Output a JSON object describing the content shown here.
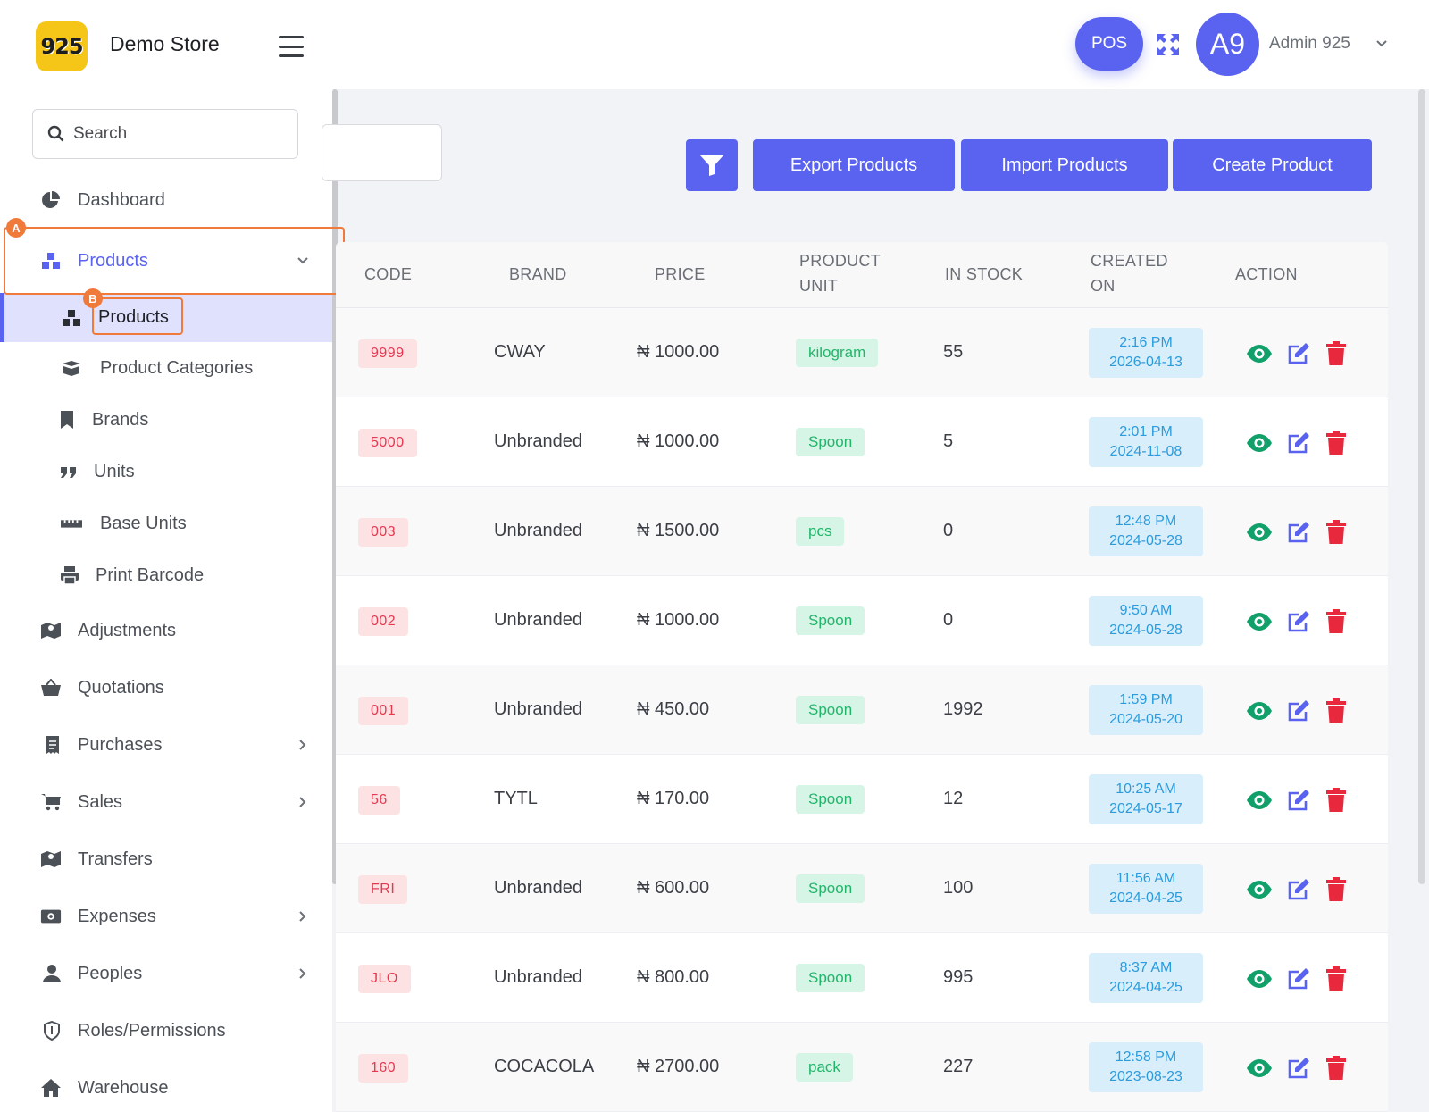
{
  "header": {
    "logo_text": "925",
    "store_name": "Demo Store",
    "pos_label": "POS",
    "avatar_initials": "A9",
    "user_name": "Admin 925"
  },
  "sidebar": {
    "search_placeholder": "Search",
    "items": [
      {
        "label": "Dashboard",
        "icon": "pie-chart-icon"
      },
      {
        "label": "Products",
        "icon": "boxes-icon"
      },
      {
        "label": "Products",
        "icon": "boxes-icon"
      },
      {
        "label": "Product Categories",
        "icon": "box-open-icon"
      },
      {
        "label": "Brands",
        "icon": "bookmark-icon"
      },
      {
        "label": "Units",
        "icon": "quote-icon"
      },
      {
        "label": "Base Units",
        "icon": "ruler-icon"
      },
      {
        "label": "Print Barcode",
        "icon": "printer-icon"
      },
      {
        "label": "Adjustments",
        "icon": "map-icon"
      },
      {
        "label": "Quotations",
        "icon": "basket-icon"
      },
      {
        "label": "Purchases",
        "icon": "receipt-icon"
      },
      {
        "label": "Sales",
        "icon": "cart-icon"
      },
      {
        "label": "Transfers",
        "icon": "map-icon"
      },
      {
        "label": "Expenses",
        "icon": "money-icon"
      },
      {
        "label": "Peoples",
        "icon": "user-icon"
      },
      {
        "label": "Roles/Permissions",
        "icon": "shield-icon"
      },
      {
        "label": "Warehouse",
        "icon": "home-icon"
      }
    ]
  },
  "annotations": {
    "a": "A",
    "b": "B"
  },
  "toolbar": {
    "export_label": "Export Products",
    "import_label": "Import Products",
    "create_label": "Create Product"
  },
  "table": {
    "headers": {
      "code": "CODE",
      "brand": "BRAND",
      "price": "PRICE",
      "unit_1": "PRODUCT",
      "unit_2": "UNIT",
      "stock": "IN STOCK",
      "created_1": "CREATED",
      "created_2": "ON",
      "action": "ACTION"
    },
    "rows": [
      {
        "code": "9999",
        "brand": "CWAY",
        "price": "₦ 1000.00",
        "unit": "kilogram",
        "stock": "55",
        "time": "2:16 PM",
        "date": "2026-04-13"
      },
      {
        "code": "5000",
        "brand": "Unbranded",
        "price": "₦ 1000.00",
        "unit": "Spoon",
        "stock": "5",
        "time": "2:01 PM",
        "date": "2024-11-08"
      },
      {
        "code": "003",
        "brand": "Unbranded",
        "price": "₦ 1500.00",
        "unit": "pcs",
        "stock": "0",
        "time": "12:48 PM",
        "date": "2024-05-28"
      },
      {
        "code": "002",
        "brand": "Unbranded",
        "price": "₦ 1000.00",
        "unit": "Spoon",
        "stock": "0",
        "time": "9:50 AM",
        "date": "2024-05-28"
      },
      {
        "code": "001",
        "brand": "Unbranded",
        "price": "₦ 450.00",
        "unit": "Spoon",
        "stock": "1992",
        "time": "1:59 PM",
        "date": "2024-05-20"
      },
      {
        "code": "56",
        "brand": "TYTL",
        "price": "₦ 170.00",
        "unit": "Spoon",
        "stock": "12",
        "time": "10:25 AM",
        "date": "2024-05-17"
      },
      {
        "code": "FRI",
        "brand": "Unbranded",
        "price": "₦ 600.00",
        "unit": "Spoon",
        "stock": "100",
        "time": "11:56 AM",
        "date": "2024-04-25"
      },
      {
        "code": "JLO",
        "brand": "Unbranded",
        "price": "₦ 800.00",
        "unit": "Spoon",
        "stock": "995",
        "time": "8:37 AM",
        "date": "2024-04-25"
      },
      {
        "code": "160",
        "brand": "COCACOLA",
        "price": "₦ 2700.00",
        "unit": "pack",
        "stock": "227",
        "time": "12:58 PM",
        "date": "2023-08-23"
      }
    ]
  },
  "colors": {
    "accent": "#5a63f0",
    "view": "#12a06a",
    "edit": "#5a63f0",
    "delete": "#e8283c",
    "highlight": "#f07a3a"
  }
}
